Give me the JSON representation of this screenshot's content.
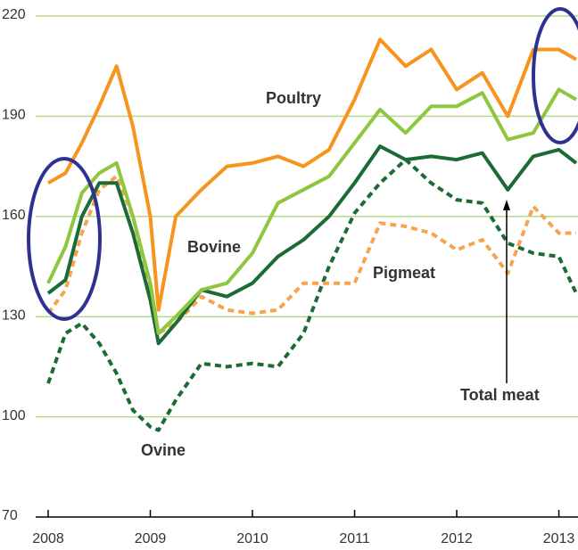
{
  "chart_data": {
    "type": "line",
    "x": [
      2008.0,
      2008.17,
      2008.33,
      2008.5,
      2008.67,
      2008.83,
      2009.0,
      2009.08,
      2009.25,
      2009.5,
      2009.75,
      2010.0,
      2010.25,
      2010.5,
      2010.75,
      2011.0,
      2011.25,
      2011.5,
      2011.75,
      2012.0,
      2012.25,
      2012.5,
      2012.75,
      2013.0,
      2013.17
    ],
    "series": [
      {
        "name": "Poultry",
        "color": "#f7941d",
        "dashed": false,
        "values": [
          170,
          173,
          182,
          193,
          205,
          187,
          160,
          132,
          160,
          168,
          175,
          176,
          178,
          175,
          180,
          195,
          213,
          205,
          210,
          198,
          203,
          190,
          210,
          210,
          207
        ]
      },
      {
        "name": "Bovine",
        "color": "#8dc63f",
        "dashed": false,
        "values": [
          140,
          151,
          167,
          173,
          176,
          160,
          140,
          125,
          130,
          138,
          140,
          149,
          164,
          168,
          172,
          182,
          192,
          185,
          193,
          193,
          197,
          183,
          185,
          198,
          195
        ]
      },
      {
        "name": "Total meat",
        "color": "#1b6b36",
        "dashed": false,
        "values": [
          137,
          141,
          160,
          170,
          170,
          155,
          135,
          122,
          128,
          138,
          136,
          140,
          148,
          153,
          160,
          170,
          181,
          177,
          178,
          177,
          179,
          168,
          178,
          180,
          176
        ]
      },
      {
        "name": "Pigmeat",
        "color": "#f7a450",
        "dashed": true,
        "values": [
          131,
          138,
          155,
          168,
          172,
          160,
          138,
          125,
          128,
          136,
          132,
          131,
          132,
          140,
          140,
          140,
          158,
          157,
          155,
          150,
          153,
          143,
          163,
          155,
          155
        ]
      },
      {
        "name": "Ovine",
        "color": "#1b6b36",
        "dashed": true,
        "values": [
          110,
          125,
          128,
          122,
          113,
          102,
          97,
          96,
          105,
          116,
          115,
          116,
          115,
          125,
          145,
          161,
          170,
          177,
          170,
          165,
          164,
          152,
          149,
          148,
          137
        ]
      }
    ],
    "xlim": [
      2008,
      2013.17
    ],
    "xticks": [
      2008,
      2009,
      2010,
      2011,
      2012,
      2013
    ],
    "ylim": [
      70,
      220
    ],
    "yticks": [
      70,
      100,
      130,
      160,
      190,
      220
    ],
    "grid": true
  }
}
